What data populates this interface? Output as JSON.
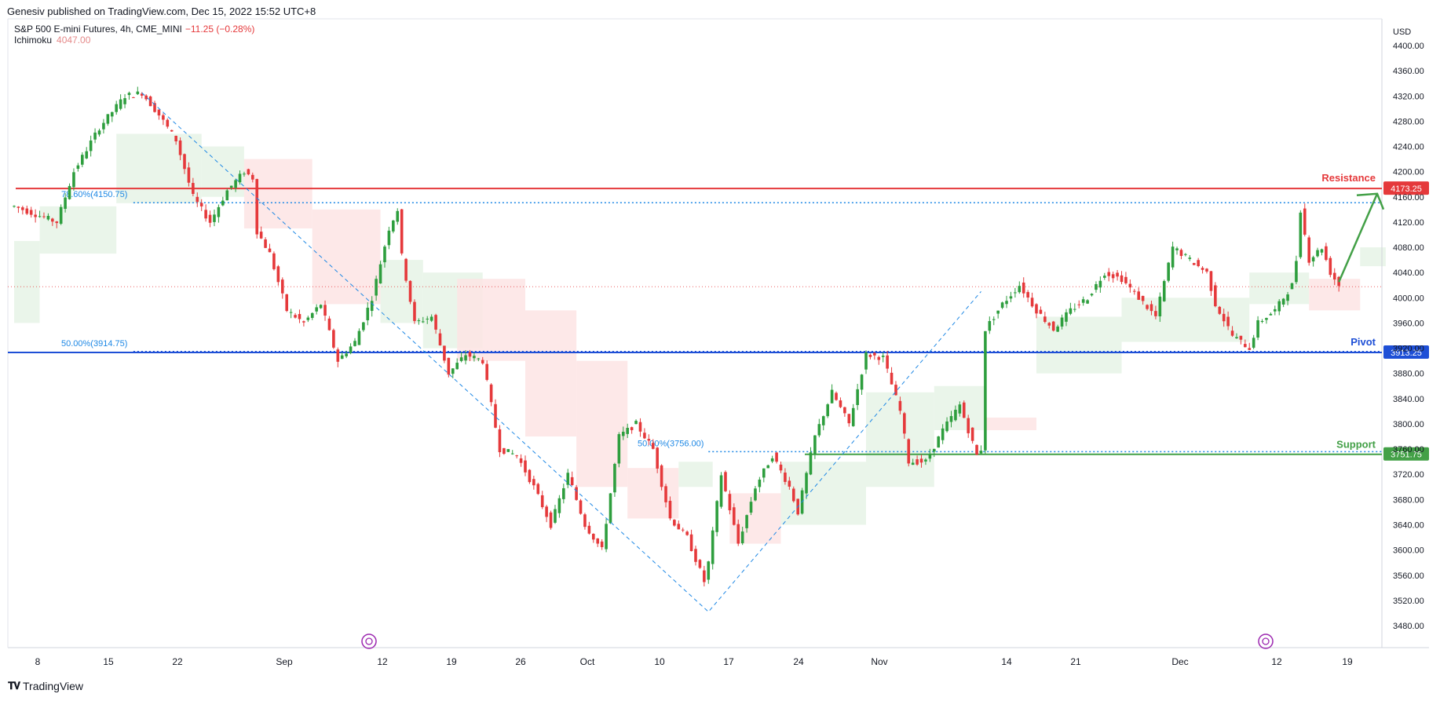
{
  "header": {
    "published": "Genesiv published on TradingView.com, Dec 15, 2022 15:52 UTC+8"
  },
  "legend": {
    "symbol": "S&P 500 E-mini Futures, 4h, CME_MINI",
    "change": "−11.25 (−0.28%)",
    "indicator": "Ichimoku",
    "indicator_value": "4047.00"
  },
  "footer": {
    "brand": "TradingView",
    "logo": "tradingview-logo"
  },
  "colors": {
    "up": "#26a69a",
    "up_green": "#2e9e3e",
    "down": "#e5393b",
    "resistance": "#e5393b",
    "pivot": "#1e4fd6",
    "support": "#43a047",
    "fib": "#1e88e5",
    "cloud_green": "#e6f3e6",
    "cloud_red": "#fde4e4"
  },
  "chart_data": {
    "type": "candlestick",
    "currency_label": "USD",
    "ylim": [
      3440,
      4440
    ],
    "y_ticks": [
      4400,
      4360,
      4320,
      4280,
      4240,
      4200,
      4160,
      4120,
      4080,
      4040,
      4000,
      3960,
      3920,
      3880,
      3840,
      3800,
      3760,
      3720,
      3680,
      3640,
      3600,
      3560,
      3520,
      3480
    ],
    "x_tick_labels": [
      "8",
      "15",
      "22",
      "Sep",
      "12",
      "19",
      "26",
      "Oct",
      "10",
      "17",
      "24",
      "Nov",
      "14",
      "21",
      "Dec",
      "12",
      "19"
    ],
    "price_path": [
      [
        0,
        4145
      ],
      [
        3,
        4130
      ],
      [
        5,
        4120
      ],
      [
        7,
        4200
      ],
      [
        10,
        4270
      ],
      [
        13,
        4320
      ],
      [
        15,
        4325
      ],
      [
        17,
        4290
      ],
      [
        19,
        4250
      ],
      [
        21,
        4160
      ],
      [
        23,
        4120
      ],
      [
        25,
        4170
      ],
      [
        27,
        4200
      ],
      [
        28,
        4190
      ],
      [
        28.3,
        4110
      ],
      [
        30,
        4070
      ],
      [
        32,
        3980
      ],
      [
        34,
        3960
      ],
      [
        36,
        3990
      ],
      [
        38,
        3900
      ],
      [
        40,
        3930
      ],
      [
        42,
        4000
      ],
      [
        44,
        4110
      ],
      [
        45,
        4140
      ],
      [
        45.3,
        4080
      ],
      [
        47,
        3960
      ],
      [
        49,
        3970
      ],
      [
        51,
        3880
      ],
      [
        53,
        3910
      ],
      [
        55,
        3900
      ],
      [
        57,
        3760
      ],
      [
        59,
        3750
      ],
      [
        61,
        3700
      ],
      [
        63,
        3640
      ],
      [
        65,
        3720
      ],
      [
        67,
        3640
      ],
      [
        69,
        3600
      ],
      [
        71,
        3780
      ],
      [
        73,
        3800
      ],
      [
        75,
        3760
      ],
      [
        77,
        3650
      ],
      [
        79,
        3620
      ],
      [
        81,
        3550
      ],
      [
        81.5,
        3580
      ],
      [
        83,
        3720
      ],
      [
        85,
        3610
      ],
      [
        87,
        3700
      ],
      [
        89,
        3750
      ],
      [
        91,
        3700
      ],
      [
        92,
        3660
      ],
      [
        94,
        3780
      ],
      [
        96,
        3850
      ],
      [
        98,
        3800
      ],
      [
        100,
        3910
      ],
      [
        102,
        3905
      ],
      [
        104,
        3820
      ],
      [
        105,
        3740
      ],
      [
        107,
        3740
      ],
      [
        109,
        3790
      ],
      [
        111,
        3830
      ],
      [
        113,
        3750
      ],
      [
        113.5,
        3760
      ],
      [
        114,
        3950
      ],
      [
        116,
        3990
      ],
      [
        118,
        4020
      ],
      [
        120,
        3980
      ],
      [
        122,
        3950
      ],
      [
        124,
        3980
      ],
      [
        126,
        4000
      ],
      [
        128,
        4040
      ],
      [
        130,
        4030
      ],
      [
        132,
        4000
      ],
      [
        134,
        3970
      ],
      [
        136,
        4080
      ],
      [
        138,
        4060
      ],
      [
        140,
        4040
      ],
      [
        141,
        3990
      ],
      [
        143,
        3940
      ],
      [
        145,
        3920
      ],
      [
        146,
        3960
      ],
      [
        148,
        3980
      ],
      [
        150,
        4020
      ],
      [
        150.5,
        4060
      ],
      [
        151,
        4140
      ],
      [
        152,
        4060
      ],
      [
        153.5,
        4080
      ],
      [
        154.5,
        4040
      ],
      [
        155.5,
        4020
      ]
    ],
    "last_index": 155.5,
    "ichimoku_cloud": [
      {
        "from": 0,
        "to": 3,
        "top": 4090,
        "bottom": 3960,
        "color": "green"
      },
      {
        "from": 3,
        "to": 12,
        "top": 4145,
        "bottom": 4070,
        "color": "green"
      },
      {
        "from": 12,
        "to": 22,
        "top": 4260,
        "bottom": 4150,
        "color": "green"
      },
      {
        "from": 22,
        "to": 27,
        "top": 4240,
        "bottom": 4160,
        "color": "green"
      },
      {
        "from": 27,
        "to": 35,
        "top": 4220,
        "bottom": 4110,
        "color": "red"
      },
      {
        "from": 35,
        "to": 43,
        "top": 4140,
        "bottom": 3990,
        "color": "red"
      },
      {
        "from": 43,
        "to": 48,
        "top": 4060,
        "bottom": 3960,
        "color": "green"
      },
      {
        "from": 48,
        "to": 55,
        "top": 4040,
        "bottom": 3920,
        "color": "green"
      },
      {
        "from": 52,
        "to": 60,
        "top": 4030,
        "bottom": 3900,
        "color": "red"
      },
      {
        "from": 60,
        "to": 66,
        "top": 3980,
        "bottom": 3780,
        "color": "red"
      },
      {
        "from": 66,
        "to": 72,
        "top": 3900,
        "bottom": 3700,
        "color": "red"
      },
      {
        "from": 72,
        "to": 78,
        "top": 3730,
        "bottom": 3650,
        "color": "red"
      },
      {
        "from": 78,
        "to": 82,
        "top": 3740,
        "bottom": 3700,
        "color": "green"
      },
      {
        "from": 84,
        "to": 90,
        "top": 3690,
        "bottom": 3610,
        "color": "red"
      },
      {
        "from": 90,
        "to": 100,
        "top": 3740,
        "bottom": 3640,
        "color": "green"
      },
      {
        "from": 100,
        "to": 108,
        "top": 3850,
        "bottom": 3700,
        "color": "green"
      },
      {
        "from": 108,
        "to": 114,
        "top": 3860,
        "bottom": 3790,
        "color": "green"
      },
      {
        "from": 114,
        "to": 120,
        "top": 3810,
        "bottom": 3790,
        "color": "red"
      },
      {
        "from": 120,
        "to": 130,
        "top": 3970,
        "bottom": 3880,
        "color": "green"
      },
      {
        "from": 130,
        "to": 145,
        "top": 4000,
        "bottom": 3930,
        "color": "green"
      },
      {
        "from": 145,
        "to": 152,
        "top": 4040,
        "bottom": 3990,
        "color": "green"
      },
      {
        "from": 152,
        "to": 158,
        "top": 4030,
        "bottom": 3980,
        "color": "red"
      },
      {
        "from": 158,
        "to": 161,
        "top": 4080,
        "bottom": 4050,
        "color": "green"
      }
    ],
    "levels": [
      {
        "name": "Resistance",
        "price": 4173.25,
        "label": "4173.25",
        "color": "#e5393b",
        "style": "solid"
      },
      {
        "name": "Pivot",
        "price": 3913.25,
        "label": "3913.25",
        "color": "#1e4fd6",
        "style": "solid"
      },
      {
        "name": "Support",
        "price": 3751.75,
        "label": "3751.75",
        "color": "#43a047",
        "style": "solid"
      }
    ],
    "last_price_line": 4017.5,
    "fib_lines": [
      {
        "label": "78.60%(4150.75)",
        "price": 4150.75,
        "from": 14,
        "to": 161
      },
      {
        "label": "50.00%(3914.75)",
        "price": 3914.75,
        "from": 14,
        "to": 161
      },
      {
        "label": "50.00%(3756.00)",
        "price": 3756.0,
        "from": 81.5,
        "to": 161
      }
    ],
    "zigzag": [
      [
        15,
        4325
      ],
      [
        81.5,
        3502
      ],
      [
        113.5,
        4010
      ]
    ],
    "projection_arrow": [
      [
        155.5,
        4025
      ],
      [
        160,
        4165
      ]
    ]
  }
}
